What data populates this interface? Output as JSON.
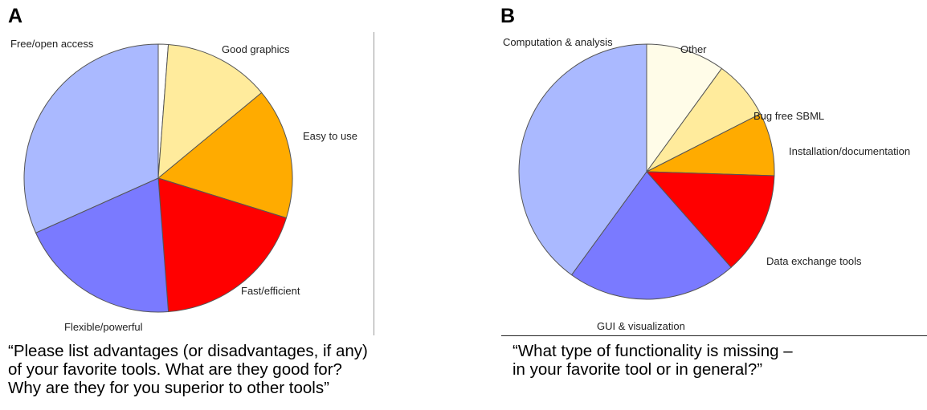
{
  "panels": [
    {
      "letter": "A",
      "caption": [
        "“Please list advantages (or disadvantages, if any)",
        "of your favorite tools. What are they good for?",
        "Why are they for you superior to other tools”"
      ]
    },
    {
      "letter": "B",
      "caption": [
        "“What type of functionality is missing –",
        "in your favorite tool or in general?”"
      ]
    }
  ],
  "chart_data": [
    {
      "type": "pie",
      "title": "",
      "start_angle_deg": 0,
      "direction": "clockwise",
      "slices": [
        {
          "label": "",
          "value": 1.2,
          "color": "#ffffff"
        },
        {
          "label": "Good graphics",
          "value": 12.8,
          "color": "#ffeb9c"
        },
        {
          "label": "Easy to use",
          "value": 15.8,
          "color": "#ffab00"
        },
        {
          "label": "Fast/efficient",
          "value": 19.0,
          "color": "#ff0000"
        },
        {
          "label": "Flexible/powerful",
          "value": 19.5,
          "color": "#7a7aff"
        },
        {
          "label": "Free/open access",
          "value": 31.7,
          "color": "#aab9ff"
        }
      ]
    },
    {
      "type": "pie",
      "title": "",
      "start_angle_deg": 0,
      "direction": "clockwise",
      "slices": [
        {
          "label": "Other",
          "value": 10.0,
          "color": "#fffce8"
        },
        {
          "label": "Bug free SBML",
          "value": 7.5,
          "color": "#ffeb9c"
        },
        {
          "label": "Installation/documentation",
          "value": 8.0,
          "color": "#ffab00"
        },
        {
          "label": "Data exchange tools",
          "value": 13.0,
          "color": "#ff0000"
        },
        {
          "label": "GUI & visualization",
          "value": 21.5,
          "color": "#7a7aff"
        },
        {
          "label": "Computation & analysis",
          "value": 40.0,
          "color": "#aab9ff"
        }
      ]
    }
  ]
}
